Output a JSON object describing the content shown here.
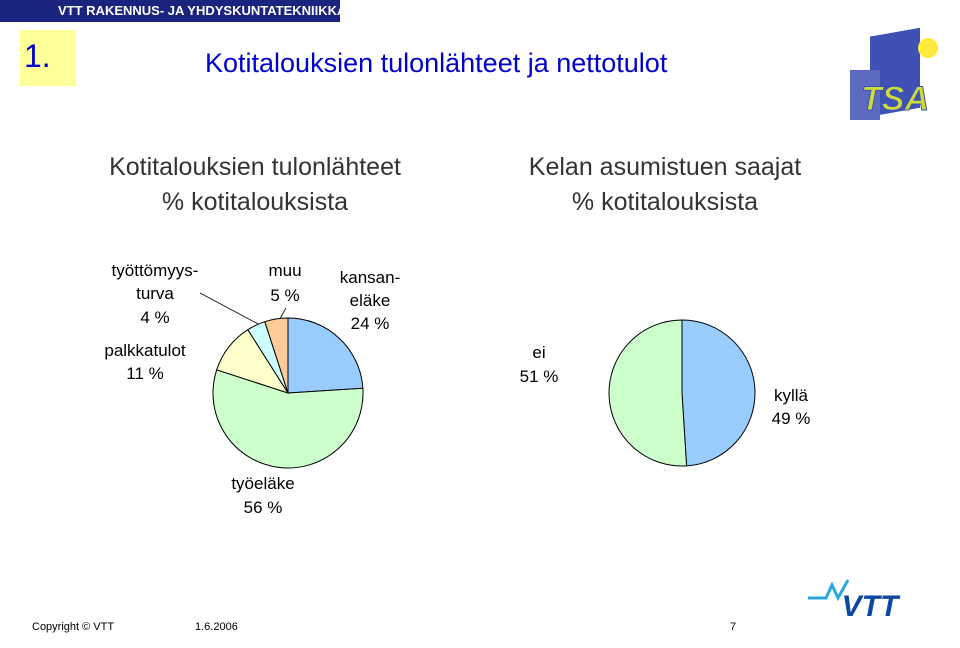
{
  "header": {
    "org": "VTT RAKENNUS- JA YHDYSKUNTATEKNIIKKA",
    "number": "1.",
    "title": "Kotitalouksien tulonlähteet ja nettotulot"
  },
  "chart_data": [
    {
      "type": "pie",
      "title": "Kotitalouksien tulonlähteet",
      "subtitle": "% kotitalouksista",
      "categories": [
        "kansan-\neläke",
        "työeläke",
        "palkkatulot",
        "työttömyys-\nturva",
        "muu"
      ],
      "values": [
        24,
        56,
        11,
        4,
        5
      ],
      "value_labels": [
        "24 %",
        "56 %",
        "11 %",
        "4 %",
        "5 %"
      ],
      "colors": [
        "#99ccff",
        "#ccffcc",
        "#ffffcc",
        "#ccffff",
        "#ffcc99"
      ]
    },
    {
      "type": "pie",
      "title": "Kelan asumistuen saajat",
      "subtitle": "% kotitalouksista",
      "categories": [
        "kyllä",
        "ei"
      ],
      "values": [
        49,
        51
      ],
      "value_labels": [
        "49 %",
        "51 %"
      ],
      "colors": [
        "#99ccff",
        "#ccffcc"
      ]
    }
  ],
  "logos": {
    "top": "TSA",
    "bottom": "VTT"
  },
  "footer": {
    "copyright": "Copyright © VTT",
    "date": "1.6.2006",
    "page": "7"
  }
}
